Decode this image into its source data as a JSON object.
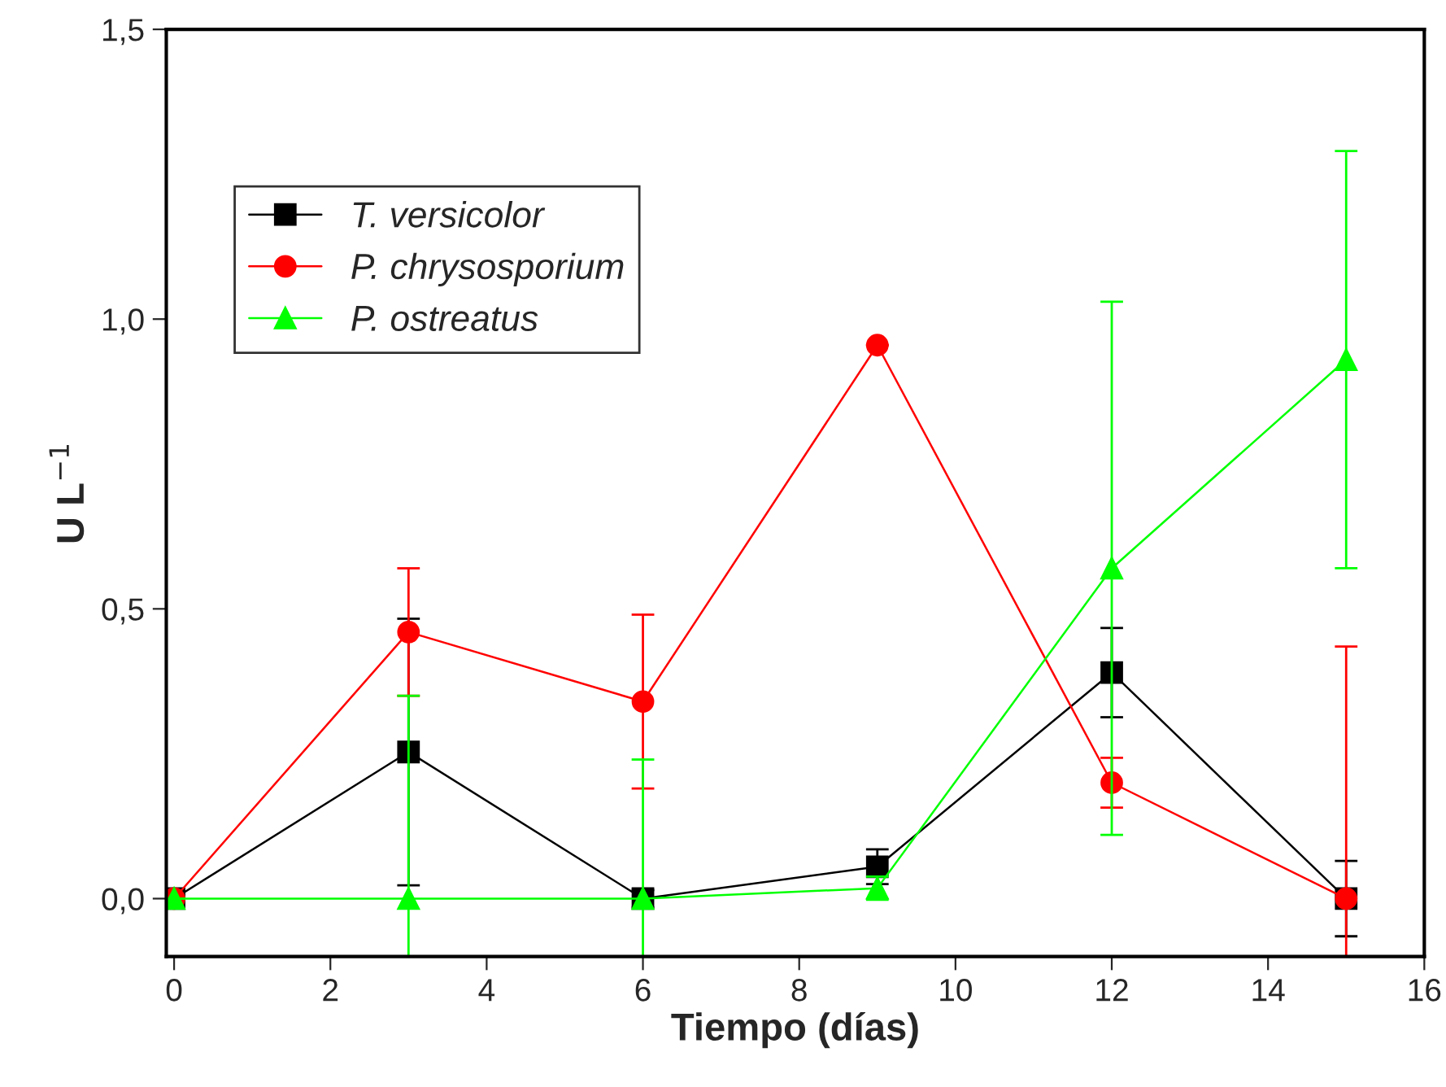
{
  "chart_data": {
    "type": "line",
    "xlabel": "Tiempo (días)",
    "ylabel": "U L$^{−1}$",
    "x": [
      0,
      3,
      6,
      9,
      12,
      15
    ],
    "series": [
      {
        "name": "T. versicolor",
        "color": "#000000",
        "marker": "square",
        "values": [
          0,
          0.253,
          0,
          0.055,
          0.39,
          0
        ],
        "errors": [
          0,
          0.23,
          0.015,
          0.03,
          0.077,
          0.065
        ]
      },
      {
        "name": "P. chrysosporium",
        "color": "#ff0000",
        "marker": "circle",
        "values": [
          0,
          0.46,
          0.34,
          0.955,
          0.2,
          0
        ],
        "errors": [
          0,
          0.11,
          0.15,
          0,
          0.043,
          [
            -0.1,
            0.435
          ]
        ]
      },
      {
        "name": "P. ostreatus",
        "color": "#00ff00",
        "marker": "triangle",
        "values": [
          0,
          0,
          0,
          0.018,
          0.57,
          0.93
        ],
        "errors": [
          0,
          [
            -0.1,
            0.35
          ],
          0.24,
          0.02,
          0.46,
          0.36
        ]
      }
    ],
    "xlim": [
      -0.1,
      16
    ],
    "ylim": [
      -0.1,
      1.5
    ],
    "xticks": [
      0,
      2,
      4,
      6,
      8,
      10,
      12,
      14,
      16
    ],
    "yticks": [
      {
        "value": 0,
        "label": "0,0"
      },
      {
        "value": 0.5,
        "label": "0,5"
      },
      {
        "value": 1.0,
        "label": "1,0"
      },
      {
        "value": 1.5,
        "label": "1,5"
      }
    ],
    "grid": false,
    "legend": "top left",
    "line_style": "solid"
  }
}
